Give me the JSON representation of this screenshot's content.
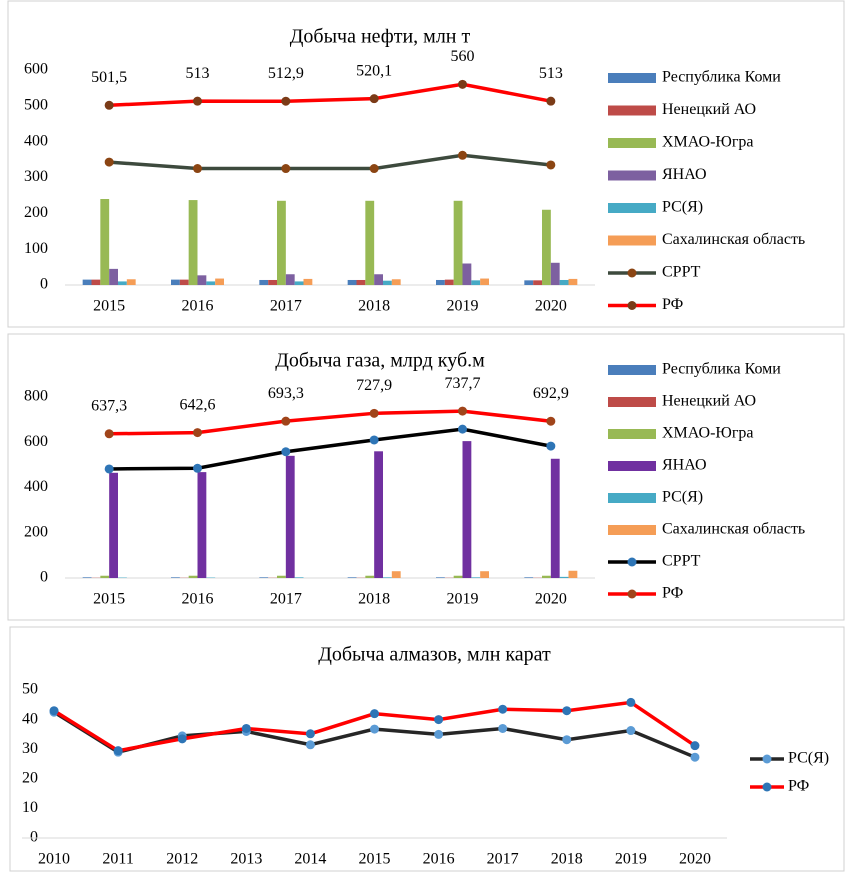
{
  "chart_data": [
    {
      "type": "combo",
      "title": "Добыча нефти, млн т",
      "categories": [
        "2015",
        "2016",
        "2017",
        "2018",
        "2019",
        "2020"
      ],
      "ylim": [
        0,
        600
      ],
      "yticks": [
        0,
        100,
        200,
        300,
        400,
        500,
        600
      ],
      "series": [
        {
          "name": "Республика Коми",
          "type": "bar",
          "color": "#4a7ebb",
          "values": [
            15,
            15,
            14,
            14,
            14,
            13
          ]
        },
        {
          "name": "Ненецкий АО",
          "type": "bar",
          "color": "#be4b48",
          "values": [
            15,
            15,
            14,
            14,
            15,
            13
          ]
        },
        {
          "name": "ХМАО-Югра",
          "type": "bar",
          "color": "#98b954",
          "values": [
            240,
            237,
            235,
            235,
            235,
            210
          ]
        },
        {
          "name": "ЯНАО",
          "type": "bar",
          "color": "#7d60a0",
          "values": [
            45,
            27,
            30,
            30,
            60,
            62
          ]
        },
        {
          "name": "РС(Я)",
          "type": "bar",
          "color": "#46aac5",
          "values": [
            10,
            10,
            10,
            12,
            13,
            14
          ]
        },
        {
          "name": "Сахалинская область",
          "type": "bar",
          "color": "#f59d56",
          "values": [
            16,
            18,
            17,
            16,
            18,
            17
          ]
        },
        {
          "name": "СРРТ",
          "type": "line",
          "color": "#3d4a3d",
          "marker_color": "#8b4513",
          "values": [
            343,
            325,
            325,
            325,
            362,
            335
          ]
        },
        {
          "name": "РФ",
          "type": "line",
          "color": "#ff0000",
          "marker_color": "#7b3b17",
          "values": [
            501.5,
            513,
            512.9,
            520.1,
            560,
            513
          ],
          "value_labels": [
            "501,5",
            "513",
            "512,9",
            "520,1",
            "560",
            "513"
          ]
        }
      ]
    },
    {
      "type": "combo",
      "title": "Добыча газа, млрд куб.м",
      "categories": [
        "2015",
        "2016",
        "2017",
        "2018",
        "2019",
        "2020"
      ],
      "ylim": [
        0,
        800
      ],
      "yticks": [
        0,
        200,
        400,
        600,
        800
      ],
      "series": [
        {
          "name": "Республика Коми",
          "type": "bar",
          "color": "#4a7ebb",
          "values": [
            3,
            3,
            3,
            3,
            3,
            3
          ]
        },
        {
          "name": "Ненецкий АО",
          "type": "bar",
          "color": "#be4b48",
          "values": [
            1,
            1,
            1,
            1,
            1,
            1
          ]
        },
        {
          "name": "ХМАО-Югра",
          "type": "bar",
          "color": "#98b954",
          "values": [
            10,
            10,
            10,
            10,
            10,
            10
          ]
        },
        {
          "name": "ЯНАО",
          "type": "bar",
          "color": "#7030a0",
          "values": [
            465,
            468,
            540,
            560,
            605,
            527
          ]
        },
        {
          "name": "РС(Я)",
          "type": "bar",
          "color": "#46aac5",
          "values": [
            2,
            2,
            3,
            3,
            3,
            5
          ]
        },
        {
          "name": "Сахалинская область",
          "type": "bar",
          "color": "#f59d56",
          "values": [
            0,
            0,
            0,
            30,
            30,
            32
          ]
        },
        {
          "name": "СРРТ",
          "type": "line",
          "color": "#000000",
          "marker_color": "#2e75b6",
          "values": [
            482,
            485,
            558,
            610,
            658,
            583
          ]
        },
        {
          "name": "РФ",
          "type": "line",
          "color": "#ff0000",
          "marker_color": "#a0441a",
          "values": [
            637.3,
            642.6,
            693.3,
            727.9,
            737.7,
            692.9
          ],
          "value_labels": [
            "637,3",
            "642,6",
            "693,3",
            "727,9",
            "737,7",
            "692,9"
          ]
        }
      ]
    },
    {
      "type": "line",
      "title": "Добыча алмазов, млн карат",
      "categories": [
        "2010",
        "2011",
        "2012",
        "2013",
        "2014",
        "2015",
        "2016",
        "2017",
        "2018",
        "2019",
        "2020"
      ],
      "ylim": [
        0,
        50
      ],
      "yticks": [
        0,
        10,
        20,
        30,
        40,
        50
      ],
      "series": [
        {
          "name": "РС(Я)",
          "type": "line",
          "color": "#262626",
          "marker_color": "#5b9bd5",
          "values": [
            42.5,
            29,
            34.5,
            36,
            31.5,
            36.8,
            35,
            37,
            33.2,
            36.3,
            27.3
          ]
        },
        {
          "name": "РФ",
          "type": "line",
          "color": "#ff0000",
          "marker_color": "#2e75b6",
          "values": [
            43,
            29.5,
            33.5,
            37,
            35.2,
            42,
            40,
            43.5,
            43,
            45.8,
            31.2
          ]
        }
      ]
    }
  ]
}
